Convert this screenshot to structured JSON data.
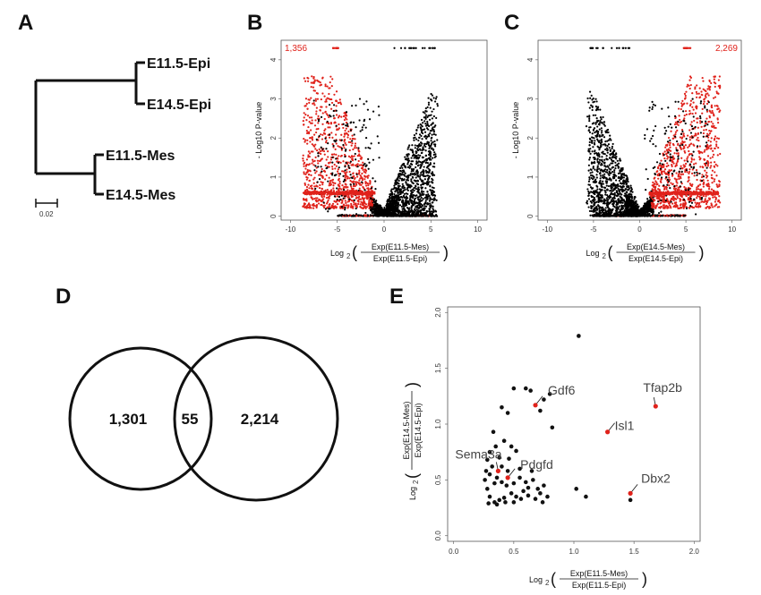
{
  "panels": {
    "a": "A",
    "b": "B",
    "c": "C",
    "d": "D",
    "e": "E"
  },
  "tree": {
    "leaves": [
      "E11.5-Epi",
      "E14.5-Epi",
      "E11.5-Mes",
      "E14.5-Mes"
    ],
    "scale": "0.02"
  },
  "chart_data": [
    {
      "panel": "B",
      "type": "scatter",
      "ylabel": "- Log10 P-value",
      "xlabel": "Log2 ( Exp(E11.5-Mes) / Exp(E11.5-Epi) )",
      "xlim": [
        -11,
        11
      ],
      "ylim": [
        -0.1,
        4.5
      ],
      "xticks": [
        "-10",
        "-5",
        "0",
        "5",
        "10"
      ],
      "yticks": [
        "0",
        "1",
        "2",
        "3",
        "4"
      ],
      "count_label": "1,356",
      "count_position": "top-left",
      "colors": {
        "significant": "#e0221b",
        "other": "#000000"
      },
      "series": [
        {
          "color": "significant",
          "x_range": [
            -9,
            -1.2
          ],
          "y_range": [
            0.2,
            3.5
          ],
          "density": "high"
        },
        {
          "color": "other",
          "x_range": [
            -1.5,
            5.5
          ],
          "y_range": [
            0,
            3.3
          ],
          "density": "high"
        }
      ]
    },
    {
      "panel": "C",
      "type": "scatter",
      "ylabel": "- Log10 P-value",
      "xlabel": "Log2 ( Exp(E14.5-Mes) / Exp(E14.5-Epi) )",
      "xlim": [
        -11,
        11
      ],
      "ylim": [
        -0.1,
        4.5
      ],
      "xticks": [
        "-10",
        "-5",
        "0",
        "5",
        "10"
      ],
      "yticks": [
        "0",
        "1",
        "2",
        "3",
        "4"
      ],
      "count_label": "2,269",
      "count_position": "top-right",
      "colors": {
        "significant": "#e0221b",
        "other": "#000000"
      },
      "series": [
        {
          "color": "other",
          "x_range": [
            -8,
            1.5
          ],
          "y_range": [
            0,
            3.2
          ],
          "density": "high"
        },
        {
          "color": "significant",
          "x_range": [
            1.2,
            10
          ],
          "y_range": [
            0.2,
            3.6
          ],
          "density": "high"
        }
      ]
    },
    {
      "panel": "E",
      "type": "scatter",
      "xlabel": "Log2 ( Exp(E11.5-Mes) / Exp(E11.5-Epi) )",
      "ylabel": "Log2 ( Exp(E14.5-Mes) / Exp(E14.5-Epi) )",
      "xlim": [
        -0.05,
        2.05
      ],
      "ylim": [
        -0.05,
        2.05
      ],
      "xticks": [
        "0.0",
        "0.5",
        "1.0",
        "1.5",
        "2.0"
      ],
      "yticks": [
        "0.0",
        "0.5",
        "1.0",
        "1.5",
        "2.0"
      ],
      "highlighted": [
        {
          "name": "Gdf6",
          "x": 0.68,
          "y": 1.17
        },
        {
          "name": "Tfap2b",
          "x": 1.68,
          "y": 1.16
        },
        {
          "name": "Isl1",
          "x": 1.28,
          "y": 0.93
        },
        {
          "name": "Pdgfd",
          "x": 0.45,
          "y": 0.52
        },
        {
          "name": "Sema3a",
          "x": 0.37,
          "y": 0.58
        },
        {
          "name": "Dbx2",
          "x": 1.47,
          "y": 0.38
        }
      ],
      "points": [
        [
          1.04,
          1.79
        ],
        [
          0.5,
          1.32
        ],
        [
          0.6,
          1.32
        ],
        [
          0.64,
          1.3
        ],
        [
          0.75,
          1.22
        ],
        [
          0.8,
          1.27
        ],
        [
          0.82,
          0.97
        ],
        [
          0.72,
          1.12
        ],
        [
          0.4,
          1.15
        ],
        [
          0.45,
          1.1
        ],
        [
          0.33,
          0.93
        ],
        [
          0.35,
          0.8
        ],
        [
          0.3,
          0.75
        ],
        [
          0.38,
          0.7
        ],
        [
          0.42,
          0.85
        ],
        [
          0.48,
          0.8
        ],
        [
          0.52,
          0.76
        ],
        [
          0.28,
          0.68
        ],
        [
          0.32,
          0.62
        ],
        [
          0.3,
          0.55
        ],
        [
          0.36,
          0.52
        ],
        [
          0.4,
          0.48
        ],
        [
          0.44,
          0.45
        ],
        [
          0.5,
          0.47
        ],
        [
          0.55,
          0.52
        ],
        [
          0.6,
          0.48
        ],
        [
          0.62,
          0.43
        ],
        [
          0.58,
          0.4
        ],
        [
          0.66,
          0.5
        ],
        [
          0.7,
          0.42
        ],
        [
          0.72,
          0.38
        ],
        [
          0.75,
          0.45
        ],
        [
          0.78,
          0.35
        ],
        [
          0.52,
          0.35
        ],
        [
          0.48,
          0.38
        ],
        [
          0.42,
          0.34
        ],
        [
          0.38,
          0.32
        ],
        [
          0.34,
          0.3
        ],
        [
          0.3,
          0.35
        ],
        [
          0.28,
          0.42
        ],
        [
          0.26,
          0.5
        ],
        [
          0.27,
          0.58
        ],
        [
          0.29,
          0.29
        ],
        [
          0.36,
          0.28
        ],
        [
          0.43,
          0.3
        ],
        [
          0.5,
          0.3
        ],
        [
          0.56,
          0.33
        ],
        [
          0.62,
          0.36
        ],
        [
          0.68,
          0.33
        ],
        [
          0.74,
          0.3
        ],
        [
          0.45,
          0.58
        ],
        [
          0.4,
          0.62
        ],
        [
          0.34,
          0.47
        ],
        [
          0.46,
          0.69
        ],
        [
          0.55,
          0.6
        ],
        [
          0.65,
          0.58
        ],
        [
          1.02,
          0.42
        ],
        [
          1.1,
          0.35
        ],
        [
          1.47,
          0.32
        ]
      ]
    }
  ],
  "venn": {
    "left": "1,301",
    "overlap": "55",
    "right": "2,214"
  }
}
